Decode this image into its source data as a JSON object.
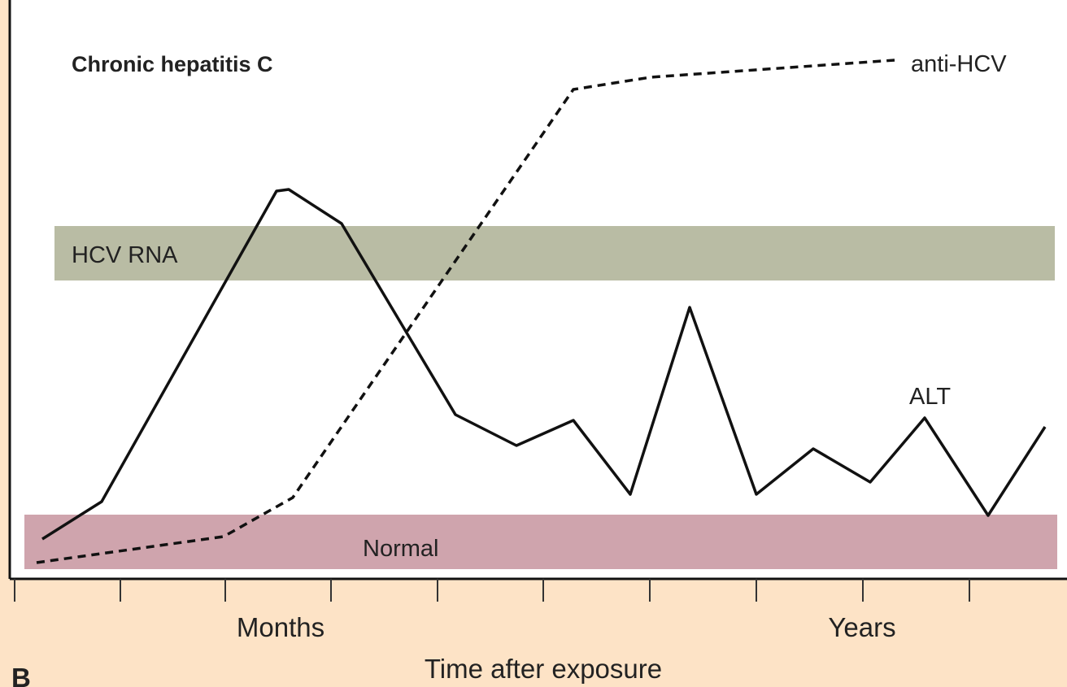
{
  "title": "Chronic hepatitis C",
  "curves": {
    "antibody": "anti-HCV",
    "enzyme": "ALT"
  },
  "bands": {
    "rna": "HCV RNA",
    "normal": "Normal"
  },
  "axis": {
    "labels": [
      "Months",
      "Years"
    ],
    "title": "Time after exposure"
  },
  "panel": "B"
}
